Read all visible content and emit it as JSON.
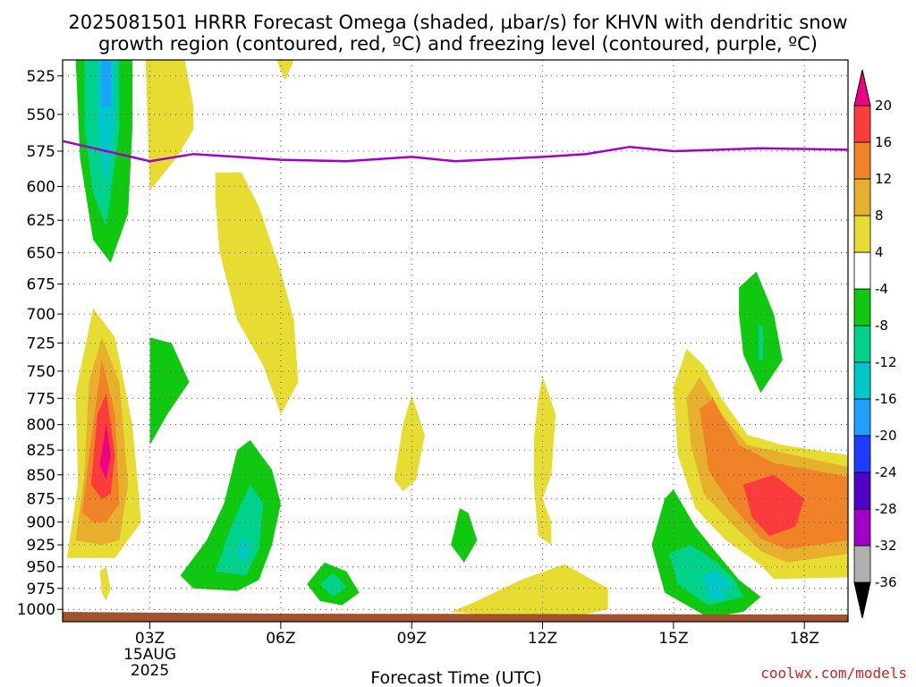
{
  "chart_data": {
    "type": "heatmap",
    "title_line1": "2025081501 HRRR Forecast Omega (shaded, µbar/s) for KHVN with dendritic snow",
    "title_line2": "growth region (contoured, red, ºC) and freezing level (contoured, purple, ºC)",
    "xlabel": "Forecast Time (UTC)",
    "x_ticks": [
      "03Z",
      "06Z",
      "09Z",
      "12Z",
      "15Z",
      "18Z"
    ],
    "x_tick_hours": [
      3,
      6,
      9,
      12,
      15,
      18
    ],
    "x_date_label": [
      "15AUG",
      "2025"
    ],
    "xlim": [
      1,
      19
    ],
    "ylabel": "",
    "y_ticks": [
      525,
      550,
      575,
      600,
      625,
      650,
      675,
      700,
      725,
      750,
      775,
      800,
      825,
      850,
      875,
      900,
      925,
      950,
      975,
      1000
    ],
    "ylim": [
      515,
      1015
    ],
    "y_scale": "log-pressure (inverted)",
    "grid": true,
    "colorbar": {
      "levels": [
        -36,
        -32,
        -28,
        -24,
        -20,
        -16,
        -12,
        -8,
        -4,
        4,
        8,
        12,
        16,
        20
      ],
      "colors": [
        "#000000",
        "#b0b0b0",
        "#a000c8",
        "#5000c8",
        "#1e3cff",
        "#1ea0ff",
        "#00c8c8",
        "#00d28c",
        "#10c810",
        "#ffffff",
        "#e6dc32",
        "#e6af2d",
        "#f08228",
        "#fa3c3c",
        "#f00082"
      ]
    },
    "series": [
      {
        "name": "freezing level",
        "color": "#a000c8",
        "x": [
          1,
          3,
          4,
          6,
          7.5,
          9,
          10,
          12,
          13,
          14,
          15,
          17,
          19
        ],
        "y": [
          568,
          582,
          577,
          581,
          582,
          579,
          582,
          579,
          577,
          572,
          575,
          573,
          574
        ]
      }
    ],
    "omega_features": [
      {
        "level": -8,
        "shape": [
          [
            2.0,
            515
          ],
          [
            2.6,
            515
          ],
          [
            2.6,
            560
          ],
          [
            2.5,
            620
          ],
          [
            2.1,
            658
          ],
          [
            1.7,
            640
          ],
          [
            1.4,
            580
          ],
          [
            1.3,
            515
          ]
        ]
      },
      {
        "level": -12,
        "shape": [
          [
            1.5,
            515
          ],
          [
            2.3,
            515
          ],
          [
            2.3,
            560
          ],
          [
            2.0,
            630
          ],
          [
            1.7,
            605
          ],
          [
            1.5,
            560
          ]
        ]
      },
      {
        "level": -16,
        "shape": [
          [
            1.8,
            515
          ],
          [
            2.2,
            515
          ],
          [
            2.2,
            555
          ],
          [
            2.0,
            600
          ],
          [
            1.8,
            560
          ]
        ]
      },
      {
        "level": -20,
        "shape": [
          [
            1.9,
            515
          ],
          [
            2.1,
            515
          ],
          [
            2.1,
            545
          ],
          [
            1.9,
            545
          ]
        ]
      },
      {
        "level": 4,
        "shape": [
          [
            1.1,
            940
          ],
          [
            1.35,
            860
          ],
          [
            1.3,
            770
          ],
          [
            1.7,
            695
          ],
          [
            2.2,
            720
          ],
          [
            2.6,
            800
          ],
          [
            2.8,
            900
          ],
          [
            2.2,
            940
          ],
          [
            1.9,
            940
          ]
        ]
      },
      {
        "level": 8,
        "shape": [
          [
            1.3,
            920
          ],
          [
            1.5,
            850
          ],
          [
            1.6,
            760
          ],
          [
            1.9,
            720
          ],
          [
            2.3,
            760
          ],
          [
            2.5,
            860
          ],
          [
            2.3,
            920
          ],
          [
            1.9,
            925
          ]
        ]
      },
      {
        "level": 12,
        "shape": [
          [
            1.45,
            890
          ],
          [
            1.7,
            800
          ],
          [
            1.9,
            740
          ],
          [
            2.2,
            790
          ],
          [
            2.3,
            880
          ],
          [
            2.0,
            900
          ],
          [
            1.7,
            900
          ]
        ]
      },
      {
        "level": 16,
        "shape": [
          [
            1.65,
            860
          ],
          [
            1.8,
            790
          ],
          [
            2.0,
            770
          ],
          [
            2.2,
            830
          ],
          [
            2.1,
            870
          ],
          [
            1.9,
            875
          ]
        ]
      },
      {
        "level": 20,
        "shape": [
          [
            1.85,
            840
          ],
          [
            2.0,
            800
          ],
          [
            2.1,
            830
          ],
          [
            2.0,
            855
          ]
        ]
      },
      {
        "level": 4,
        "shape": [
          [
            1.85,
            955
          ],
          [
            2.0,
            950
          ],
          [
            2.1,
            975
          ],
          [
            2.0,
            990
          ],
          [
            1.9,
            980
          ]
        ]
      },
      {
        "level": 4,
        "shape": [
          [
            2.9,
            515
          ],
          [
            3.8,
            515
          ],
          [
            4.0,
            545
          ],
          [
            4.0,
            560
          ],
          [
            3.6,
            580
          ],
          [
            3.0,
            603
          ]
        ]
      },
      {
        "level": 4,
        "shape": [
          [
            5.9,
            515
          ],
          [
            6.3,
            515
          ],
          [
            6.1,
            528
          ]
        ]
      },
      {
        "level": 4,
        "shape": [
          [
            4.5,
            590
          ],
          [
            5.1,
            590
          ],
          [
            5.5,
            615
          ],
          [
            6.0,
            665
          ],
          [
            6.3,
            705
          ],
          [
            6.4,
            760
          ],
          [
            6.0,
            790
          ],
          [
            5.6,
            745
          ],
          [
            5.0,
            705
          ],
          [
            4.6,
            650
          ],
          [
            4.5,
            610
          ]
        ]
      },
      {
        "level": -8,
        "shape": [
          [
            3.0,
            720
          ],
          [
            3.5,
            725
          ],
          [
            3.9,
            760
          ],
          [
            3.4,
            790
          ],
          [
            3.0,
            820
          ]
        ]
      },
      {
        "level": -8,
        "shape": [
          [
            4.0,
            975
          ],
          [
            3.7,
            960
          ],
          [
            4.3,
            920
          ],
          [
            4.7,
            880
          ],
          [
            5.0,
            825
          ],
          [
            5.3,
            815
          ],
          [
            5.8,
            845
          ],
          [
            6.0,
            880
          ],
          [
            5.8,
            925
          ],
          [
            5.5,
            965
          ],
          [
            5.0,
            978
          ]
        ]
      },
      {
        "level": -12,
        "shape": [
          [
            4.5,
            955
          ],
          [
            4.9,
            900
          ],
          [
            5.3,
            860
          ],
          [
            5.6,
            880
          ],
          [
            5.5,
            930
          ],
          [
            5.2,
            960
          ]
        ]
      },
      {
        "level": -16,
        "shape": [
          [
            5.0,
            930
          ],
          [
            5.2,
            915
          ],
          [
            5.3,
            935
          ],
          [
            5.1,
            945
          ]
        ]
      },
      {
        "level": -8,
        "shape": [
          [
            6.6,
            970
          ],
          [
            7.0,
            945
          ],
          [
            7.5,
            955
          ],
          [
            7.8,
            980
          ],
          [
            7.4,
            995
          ],
          [
            6.9,
            990
          ]
        ]
      },
      {
        "level": -12,
        "shape": [
          [
            6.9,
            970
          ],
          [
            7.2,
            957
          ],
          [
            7.5,
            973
          ],
          [
            7.2,
            985
          ]
        ]
      },
      {
        "level": 4,
        "shape": [
          [
            8.6,
            855
          ],
          [
            8.8,
            800
          ],
          [
            9.0,
            772
          ],
          [
            9.3,
            810
          ],
          [
            9.1,
            855
          ],
          [
            8.8,
            867
          ]
        ]
      },
      {
        "level": 4,
        "shape": [
          [
            11.8,
            815
          ],
          [
            11.9,
            775
          ],
          [
            12.0,
            755
          ],
          [
            12.3,
            790
          ],
          [
            12.2,
            850
          ],
          [
            12.0,
            875
          ],
          [
            12.2,
            900
          ],
          [
            12.2,
            925
          ],
          [
            11.9,
            915
          ],
          [
            11.8,
            860
          ]
        ]
      },
      {
        "level": -8,
        "shape": [
          [
            9.9,
            925
          ],
          [
            10.1,
            885
          ],
          [
            10.3,
            890
          ],
          [
            10.5,
            920
          ],
          [
            10.2,
            945
          ]
        ]
      },
      {
        "level": 4,
        "shape": [
          [
            9.9,
            1003
          ],
          [
            10.5,
            990
          ],
          [
            11.5,
            965
          ],
          [
            12.5,
            947
          ],
          [
            13.5,
            975
          ],
          [
            13.5,
            1000
          ],
          [
            12.6,
            1010
          ],
          [
            11.0,
            1008
          ]
        ]
      },
      {
        "level": 4,
        "shape": [
          [
            15.0,
            765
          ],
          [
            15.3,
            730
          ],
          [
            15.7,
            745
          ],
          [
            16.1,
            775
          ],
          [
            16.7,
            810
          ],
          [
            17.5,
            820
          ],
          [
            19.0,
            830
          ],
          [
            19.0,
            962
          ],
          [
            17.3,
            964
          ],
          [
            17.0,
            948
          ],
          [
            16.2,
            920
          ],
          [
            15.5,
            885
          ],
          [
            15.1,
            830
          ]
        ]
      },
      {
        "level": 8,
        "shape": [
          [
            15.3,
            775
          ],
          [
            15.6,
            755
          ],
          [
            16.1,
            790
          ],
          [
            16.7,
            820
          ],
          [
            19.0,
            842
          ],
          [
            19.0,
            935
          ],
          [
            17.6,
            945
          ],
          [
            17.0,
            932
          ],
          [
            16.4,
            905
          ],
          [
            15.7,
            870
          ],
          [
            15.4,
            820
          ]
        ]
      },
      {
        "level": 12,
        "shape": [
          [
            15.6,
            785
          ],
          [
            15.9,
            775
          ],
          [
            16.5,
            820
          ],
          [
            17.3,
            838
          ],
          [
            19.0,
            852
          ],
          [
            19.0,
            920
          ],
          [
            17.6,
            930
          ],
          [
            17.0,
            918
          ],
          [
            16.3,
            880
          ],
          [
            15.8,
            845
          ]
        ]
      },
      {
        "level": 16,
        "shape": [
          [
            16.6,
            860
          ],
          [
            17.3,
            850
          ],
          [
            18.0,
            875
          ],
          [
            17.8,
            905
          ],
          [
            17.2,
            915
          ],
          [
            16.8,
            895
          ]
        ]
      },
      {
        "level": -8,
        "shape": [
          [
            14.5,
            925
          ],
          [
            14.8,
            875
          ],
          [
            15.0,
            865
          ],
          [
            15.5,
            905
          ],
          [
            16.0,
            935
          ],
          [
            16.5,
            965
          ],
          [
            17.0,
            985
          ],
          [
            16.6,
            1003
          ],
          [
            15.8,
            1010
          ],
          [
            14.8,
            980
          ]
        ]
      },
      {
        "level": -12,
        "shape": [
          [
            14.9,
            935
          ],
          [
            15.4,
            925
          ],
          [
            16.0,
            945
          ],
          [
            16.4,
            965
          ],
          [
            16.6,
            985
          ],
          [
            15.8,
            995
          ],
          [
            15.1,
            970
          ]
        ]
      },
      {
        "level": -16,
        "shape": [
          [
            15.7,
            960
          ],
          [
            16.0,
            955
          ],
          [
            16.3,
            970
          ],
          [
            16.1,
            990
          ],
          [
            15.8,
            985
          ]
        ]
      },
      {
        "level": -8,
        "shape": [
          [
            16.5,
            678
          ],
          [
            16.9,
            665
          ],
          [
            17.3,
            700
          ],
          [
            17.5,
            740
          ],
          [
            17.0,
            770
          ],
          [
            16.6,
            735
          ],
          [
            16.5,
            700
          ]
        ]
      },
      {
        "level": -12,
        "shape": [
          [
            16.95,
            710
          ],
          [
            17.05,
            710
          ],
          [
            17.05,
            740
          ],
          [
            16.95,
            740
          ]
        ]
      }
    ]
  },
  "footer": {
    "credit": "coolwx.com/models"
  }
}
